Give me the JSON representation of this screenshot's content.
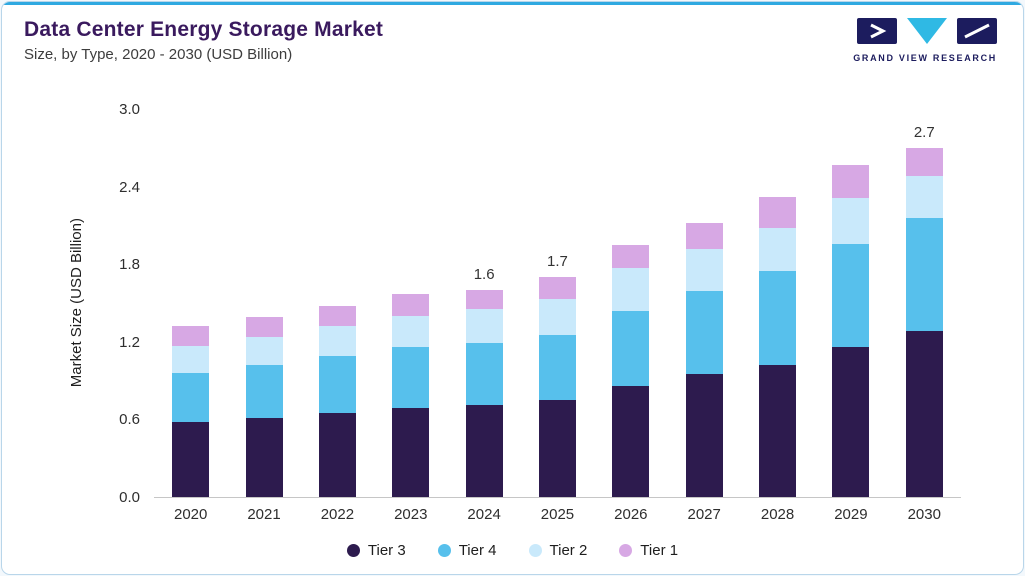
{
  "page": {
    "title": "Data Center Energy Storage Market",
    "subtitle": "Size, by Type, 2020 - 2030 (USD Billion)"
  },
  "logo": {
    "text": "GRAND VIEW RESEARCH",
    "navy": "#1c1c5e",
    "cyan": "#2fb9e4"
  },
  "chart_data": {
    "type": "bar",
    "stacked": true,
    "title": "Data Center Energy Storage Market Size, by Type, 2020 - 2030 (USD Billion)",
    "categories": [
      "2020",
      "2021",
      "2022",
      "2023",
      "2024",
      "2025",
      "2026",
      "2027",
      "2028",
      "2029",
      "2030"
    ],
    "series": [
      {
        "name": "Tier 3",
        "color": "#2d1b4e",
        "values": [
          0.58,
          0.61,
          0.65,
          0.69,
          0.71,
          0.75,
          0.86,
          0.95,
          1.02,
          1.16,
          1.28
        ]
      },
      {
        "name": "Tier 4",
        "color": "#57c0ec",
        "values": [
          0.38,
          0.41,
          0.44,
          0.47,
          0.48,
          0.5,
          0.58,
          0.64,
          0.73,
          0.8,
          0.88
        ]
      },
      {
        "name": "Tier 2",
        "color": "#c9e9fb",
        "values": [
          0.21,
          0.22,
          0.23,
          0.24,
          0.26,
          0.28,
          0.33,
          0.33,
          0.33,
          0.35,
          0.32
        ]
      },
      {
        "name": "Tier 1",
        "color": "#d7a8e4",
        "values": [
          0.15,
          0.15,
          0.16,
          0.17,
          0.15,
          0.17,
          0.18,
          0.2,
          0.24,
          0.26,
          0.22
        ]
      }
    ],
    "bar_labels": {
      "2024": "1.6",
      "2025": "1.7",
      "2030": "2.7"
    },
    "xlabel": "",
    "ylabel": "Market Size (USD Billion)",
    "ylim": [
      0,
      3.0
    ],
    "yticks": [
      "0.0",
      "0.6",
      "1.2",
      "1.8",
      "2.4",
      "3.0"
    ],
    "grid": false,
    "legend_position": "bottom"
  }
}
